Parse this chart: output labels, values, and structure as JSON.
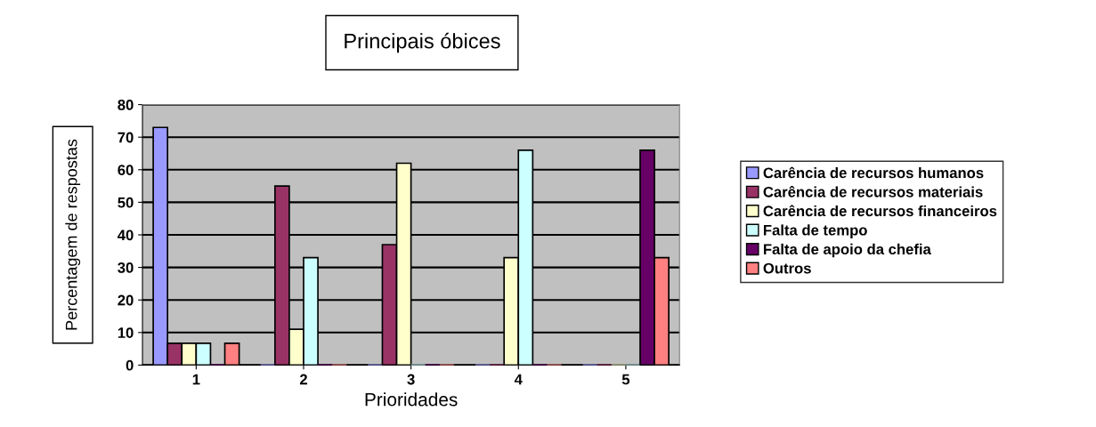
{
  "chart_data": {
    "type": "bar",
    "title": "Principais óbices",
    "xlabel": "Prioridades",
    "ylabel": "Percentagem de respostas",
    "categories": [
      "1",
      "2",
      "3",
      "4",
      "5"
    ],
    "series": [
      {
        "name": "Carência de recursos humanos",
        "color": "#9999ff",
        "values": [
          73,
          0,
          0,
          0,
          0
        ]
      },
      {
        "name": "Carência de recursos materiais",
        "color": "#993366",
        "values": [
          6.7,
          55,
          37,
          0,
          0
        ]
      },
      {
        "name": "Carência de recursos financeiros",
        "color": "#ffffcc",
        "values": [
          6.7,
          11,
          62,
          33,
          0
        ]
      },
      {
        "name": "Falta de tempo",
        "color": "#ccffff",
        "values": [
          6.7,
          33,
          0,
          66,
          0
        ]
      },
      {
        "name": "Falta de apoio da chefia",
        "color": "#660066",
        "values": [
          0,
          0,
          0,
          0,
          66
        ]
      },
      {
        "name": "Outros",
        "color": "#ff8080",
        "values": [
          6.7,
          0,
          0,
          0,
          33
        ]
      }
    ],
    "ylim": [
      0,
      80
    ],
    "yticks": [
      0,
      10,
      20,
      30,
      40,
      50,
      60,
      70,
      80
    ],
    "grid": "y",
    "legend": "right"
  }
}
